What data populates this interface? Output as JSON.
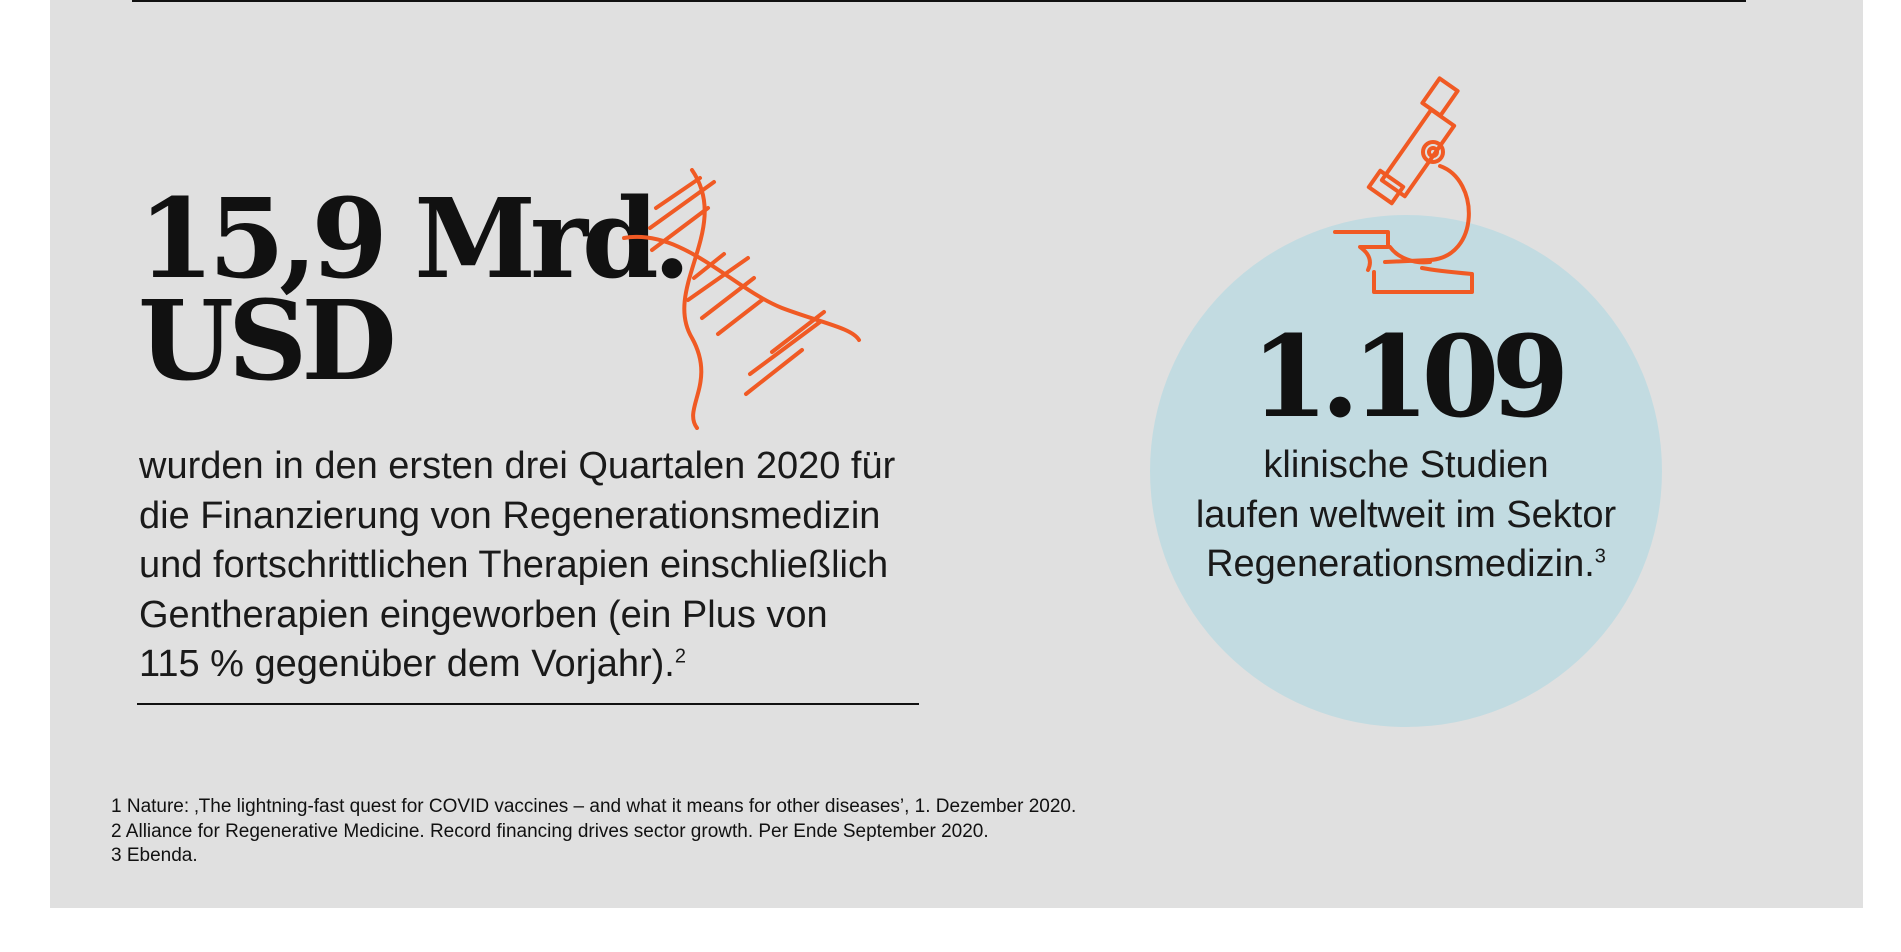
{
  "funding": {
    "amount": "15,9 Mrd.",
    "currency": "USD",
    "description_lines": [
      "wurden in den ersten drei Quartalen 2020 für",
      "die Finanzierung von Regenerationsmedizin",
      "und fortschrittlichen Therapien einschließlich",
      "Gentherapien eingeworben (ein Plus von",
      "115 % gegenüber dem Vorjahr)."
    ],
    "footnote_ref": "2",
    "icon": "dna-icon"
  },
  "studies": {
    "number": "1.109",
    "description_lines": [
      "klinische Studien",
      "laufen weltweit im Sektor",
      "Regenerationsmedizin."
    ],
    "footnote_ref": "3",
    "icon": "microscope-icon"
  },
  "footnotes": [
    "1  Nature: ‚The lightning-fast quest for COVID vaccines – and what it means for other diseases’, 1. Dezember 2020.",
    "2 Alliance for Regenerative Medicine. Record financing drives sector growth. Per Ende September 2020.",
    "3 Ebenda."
  ],
  "colors": {
    "background": "#e0e0e0",
    "accent": "#f05a24",
    "circle": "#c2dbe1",
    "text": "#111111"
  }
}
